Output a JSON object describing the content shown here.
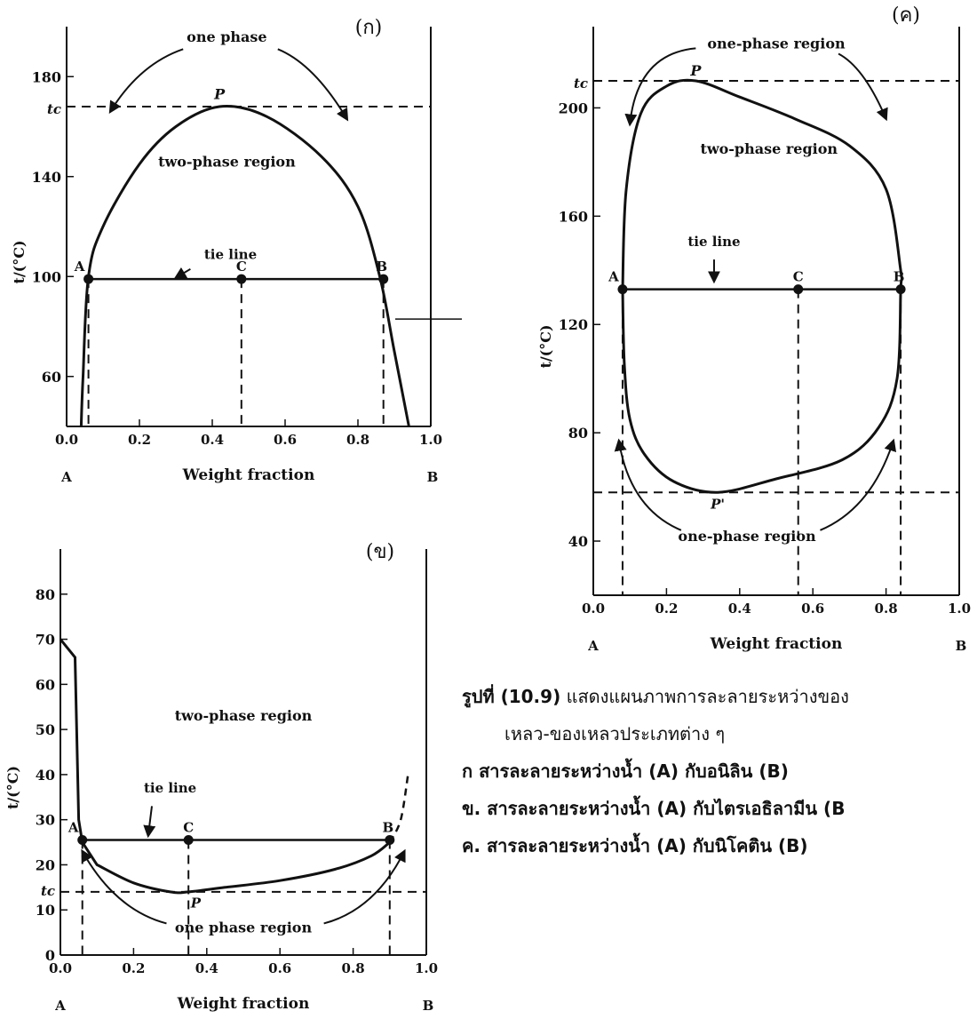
{
  "panels": [
    {
      "id": "ka",
      "panel_label": "(ก)",
      "chart_data": {
        "type": "line",
        "xlabel": "Weight fraction",
        "ylabel": "t/(°C)",
        "x_ticks": [
          "0.0",
          "0.2",
          "0.4",
          "0.6",
          "0.8",
          "1.0"
        ],
        "y_ticks": [
          "60",
          "100",
          "140",
          "180"
        ],
        "xlim": [
          0,
          1
        ],
        "ylim": [
          40,
          200
        ],
        "x_end_left": "A",
        "x_end_right": "B",
        "tc_label": "tc",
        "tc_value": 168,
        "curve": [
          [
            0.04,
            40
          ],
          [
            0.045,
            60
          ],
          [
            0.06,
            100
          ],
          [
            0.1,
            120
          ],
          [
            0.2,
            145
          ],
          [
            0.3,
            160
          ],
          [
            0.42,
            168
          ],
          [
            0.55,
            164
          ],
          [
            0.7,
            148
          ],
          [
            0.8,
            128
          ],
          [
            0.86,
            100
          ],
          [
            0.9,
            70
          ],
          [
            0.94,
            40
          ]
        ],
        "tie_line": {
          "y": 99,
          "points": [
            {
              "name": "A",
              "x": 0.06
            },
            {
              "name": "C",
              "x": 0.48
            },
            {
              "name": "B",
              "x": 0.87
            }
          ]
        },
        "labels": {
          "region": "two-phase region",
          "one_phase": "one phase",
          "tie": "tie line",
          "peak": "P"
        }
      }
    },
    {
      "id": "kho",
      "panel_label": "(ข)",
      "chart_data": {
        "type": "line",
        "xlabel": "Weight fraction",
        "ylabel": "t/(°C)",
        "x_ticks": [
          "0.0",
          "0.2",
          "0.4",
          "0.6",
          "0.8",
          "1.0"
        ],
        "y_ticks": [
          "0",
          "10",
          "20",
          "30",
          "40",
          "50",
          "60",
          "70",
          "80"
        ],
        "xlim": [
          0,
          1
        ],
        "ylim": [
          0,
          90
        ],
        "x_end_left": "A",
        "x_end_right": "B",
        "tc_label": "tc",
        "tc_value": 14,
        "left_branch": [
          [
            0.0,
            70
          ],
          [
            0.04,
            66
          ],
          [
            0.05,
            30
          ],
          [
            0.06,
            25
          ],
          [
            0.1,
            20
          ],
          [
            0.2,
            16
          ],
          [
            0.3,
            14
          ],
          [
            0.35,
            14
          ],
          [
            0.45,
            15
          ],
          [
            0.6,
            16.5
          ],
          [
            0.75,
            19
          ],
          [
            0.85,
            22
          ],
          [
            0.9,
            25
          ],
          [
            0.93,
            30
          ],
          [
            0.95,
            40
          ]
        ],
        "tie_line": {
          "y": 25.5,
          "points": [
            {
              "name": "A",
              "x": 0.06
            },
            {
              "name": "C",
              "x": 0.35
            },
            {
              "name": "B",
              "x": 0.9
            }
          ]
        },
        "labels": {
          "region": "two-phase region",
          "one_phase": "one phase region",
          "tie": "tie line",
          "trough": "P"
        }
      }
    },
    {
      "id": "kho_khon",
      "panel_label": "(ค)",
      "chart_data": {
        "type": "line",
        "xlabel": "Weight fraction",
        "ylabel": "t/(°C)",
        "x_ticks": [
          "0.0",
          "0.2",
          "0.4",
          "0.6",
          "0.8",
          "1.0"
        ],
        "y_ticks": [
          "40",
          "80",
          "120",
          "160",
          "200"
        ],
        "xlim": [
          0,
          1
        ],
        "ylim": [
          20,
          230
        ],
        "x_end_left": "A",
        "x_end_right": "B",
        "tc_upper_label": "tc",
        "tc_upper": 210,
        "tc_lower": 58,
        "closed_loop": [
          [
            0.08,
            133
          ],
          [
            0.09,
            170
          ],
          [
            0.13,
            198
          ],
          [
            0.2,
            208
          ],
          [
            0.28,
            210
          ],
          [
            0.4,
            204
          ],
          [
            0.55,
            196
          ],
          [
            0.7,
            186
          ],
          [
            0.8,
            170
          ],
          [
            0.84,
            140
          ],
          [
            0.84,
            133
          ],
          [
            0.83,
            100
          ],
          [
            0.78,
            82
          ],
          [
            0.68,
            70
          ],
          [
            0.5,
            63
          ],
          [
            0.34,
            58
          ],
          [
            0.22,
            62
          ],
          [
            0.14,
            72
          ],
          [
            0.1,
            85
          ],
          [
            0.085,
            105
          ],
          [
            0.08,
            133
          ]
        ],
        "tie_line": {
          "y": 133,
          "points": [
            {
              "name": "A",
              "x": 0.08
            },
            {
              "name": "C",
              "x": 0.56
            },
            {
              "name": "B",
              "x": 0.84
            }
          ]
        },
        "labels": {
          "region": "two-phase region",
          "one_phase_top": "one-phase region",
          "one_phase_bottom": "one-phase region",
          "tie": "tie line",
          "peak": "P",
          "trough": "P'"
        }
      }
    }
  ],
  "caption": {
    "title_bold": "รูปที่ (10.9)",
    "title_rest": " แสดงแผนภาพการละลายระหว่างของ",
    "title_cont": "เหลว-ของเหลวประเภทต่าง ๆ",
    "items": [
      "ก สารละลายระหว่างน้ำ (A) กับอนิลิน (B)",
      "ข. สารละลายระหว่างน้ำ (A) กับไตรเอธิลามีน (B",
      "ค. สารละลายระหว่างน้ำ (A) กับนิโคติน (B)"
    ]
  }
}
